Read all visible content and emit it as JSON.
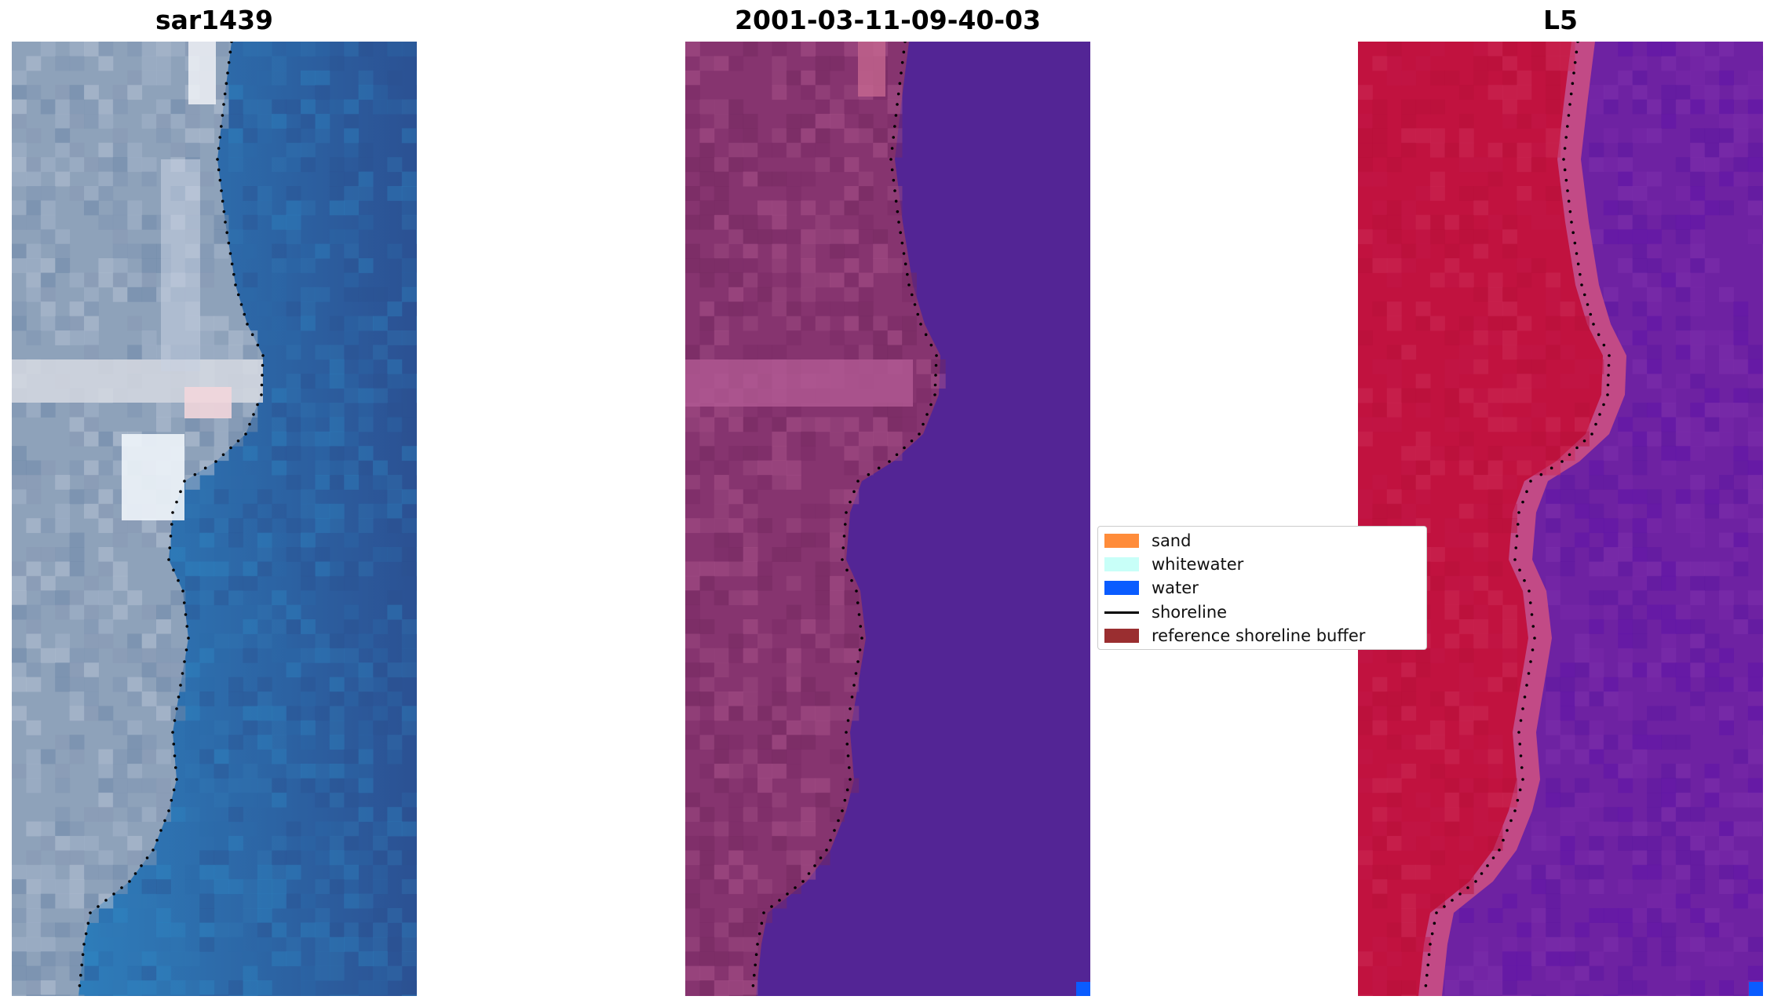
{
  "panels": [
    {
      "title": "sar1439",
      "kind": "rgb"
    },
    {
      "title": "2001-03-11-09-40-03",
      "kind": "classified"
    },
    {
      "title": "L5",
      "kind": "index"
    }
  ],
  "legend": {
    "items": [
      {
        "label": "sand",
        "color": "#ff8c3a",
        "kind": "patch"
      },
      {
        "label": "whitewater",
        "color": "#c8fff8",
        "kind": "patch"
      },
      {
        "label": "water",
        "color": "#0a5cff",
        "kind": "patch"
      },
      {
        "label": "shoreline",
        "color": "#000000",
        "kind": "line"
      },
      {
        "label": "reference shoreline buffer",
        "color": "#9a2e30",
        "kind": "patch"
      }
    ]
  },
  "colors": {
    "rgb_water_deep": "#2d5a96",
    "rgb_water_mid": "#2e7bb8",
    "rgb_land": "#8fa3bd",
    "class_water": "#532595",
    "class_land": "#8a3a76",
    "index_land": "#c0123e",
    "index_water": "#6a1fa0",
    "shoreline": "#000000"
  }
}
